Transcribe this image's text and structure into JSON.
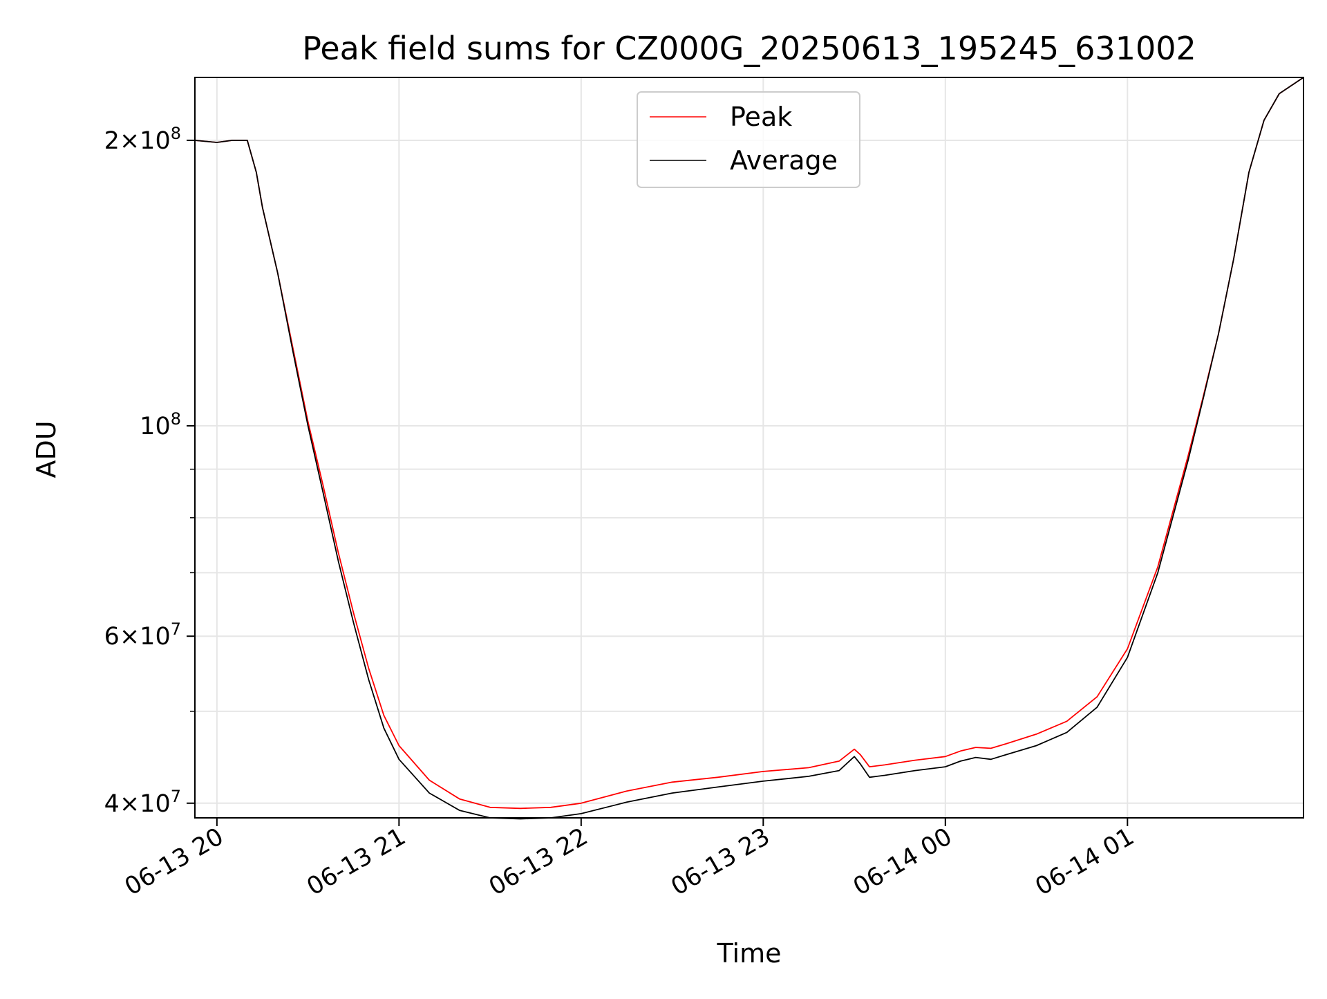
{
  "chart_data": {
    "type": "line",
    "title": "Peak field sums for CZ000G_20250613_195245_631002",
    "xlabel": "Time",
    "ylabel": "ADU",
    "y_scale": "log",
    "grid": true,
    "legend_position": "top-center",
    "xlim": [
      "2025-06-13 19:52:45",
      "2025-06-14 01:58:00"
    ],
    "ylim": [
      38600000,
      233000000
    ],
    "x_ticks": [
      {
        "value": "2025-06-13 20:00",
        "label": "06-13 20"
      },
      {
        "value": "2025-06-13 21:00",
        "label": "06-13 21"
      },
      {
        "value": "2025-06-13 22:00",
        "label": "06-13 22"
      },
      {
        "value": "2025-06-13 23:00",
        "label": "06-13 23"
      },
      {
        "value": "2025-06-14 00:00",
        "label": "06-14 00"
      },
      {
        "value": "2025-06-14 01:00",
        "label": "06-14 01"
      }
    ],
    "y_ticks": [
      {
        "value": 40000000,
        "base": "4",
        "exp": "7"
      },
      {
        "value": 60000000,
        "base": "6",
        "exp": "7"
      },
      {
        "value": 100000000,
        "base": "",
        "exp": "8"
      },
      {
        "value": 200000000,
        "base": "2",
        "exp": "8"
      }
    ],
    "y_minor_ticks": [
      50000000,
      70000000,
      80000000,
      90000000
    ],
    "series": [
      {
        "name": "Average",
        "color": "#000000",
        "x": [
          "2025-06-13 19:52:45",
          "2025-06-13 20:00",
          "2025-06-13 20:05",
          "2025-06-13 20:10",
          "2025-06-13 20:13",
          "2025-06-13 20:15",
          "2025-06-13 20:20",
          "2025-06-13 20:25",
          "2025-06-13 20:30",
          "2025-06-13 20:35",
          "2025-06-13 20:40",
          "2025-06-13 20:45",
          "2025-06-13 20:50",
          "2025-06-13 20:55",
          "2025-06-13 21:00",
          "2025-06-13 21:10",
          "2025-06-13 21:20",
          "2025-06-13 21:30",
          "2025-06-13 21:40",
          "2025-06-13 21:50",
          "2025-06-13 22:00",
          "2025-06-13 22:15",
          "2025-06-13 22:30",
          "2025-06-13 22:45",
          "2025-06-13 23:00",
          "2025-06-13 23:15",
          "2025-06-13 23:25",
          "2025-06-13 23:30",
          "2025-06-13 23:32",
          "2025-06-13 23:35",
          "2025-06-13 23:40",
          "2025-06-13 23:50",
          "2025-06-14 00:00",
          "2025-06-14 00:05",
          "2025-06-14 00:10",
          "2025-06-14 00:15",
          "2025-06-14 00:20",
          "2025-06-14 00:30",
          "2025-06-14 00:40",
          "2025-06-14 00:50",
          "2025-06-14 01:00",
          "2025-06-14 01:10",
          "2025-06-14 01:20",
          "2025-06-14 01:25",
          "2025-06-14 01:30",
          "2025-06-14 01:35",
          "2025-06-14 01:40",
          "2025-06-14 01:45",
          "2025-06-14 01:50",
          "2025-06-14 01:58"
        ],
        "y": [
          200000000,
          199000000,
          200000000,
          200000000,
          185000000,
          170000000,
          145000000,
          120000000,
          100000000,
          85000000,
          72000000,
          62000000,
          54000000,
          48000000,
          44500000,
          41000000,
          39300000,
          38600000,
          38500000,
          38600000,
          39000000,
          40100000,
          41000000,
          41600000,
          42200000,
          42700000,
          43300000,
          44800000,
          44000000,
          42600000,
          42800000,
          43300000,
          43700000,
          44300000,
          44700000,
          44500000,
          45000000,
          46000000,
          47500000,
          50500000,
          57000000,
          70000000,
          92000000,
          107000000,
          125000000,
          150000000,
          185000000,
          210000000,
          224000000,
          233000000
        ]
      },
      {
        "name": "Peak",
        "color": "#ff0000",
        "x": [
          "2025-06-13 19:52:45",
          "2025-06-13 20:00",
          "2025-06-13 20:05",
          "2025-06-13 20:10",
          "2025-06-13 20:13",
          "2025-06-13 20:15",
          "2025-06-13 20:20",
          "2025-06-13 20:25",
          "2025-06-13 20:30",
          "2025-06-13 20:35",
          "2025-06-13 20:40",
          "2025-06-13 20:45",
          "2025-06-13 20:50",
          "2025-06-13 20:55",
          "2025-06-13 21:00",
          "2025-06-13 21:10",
          "2025-06-13 21:20",
          "2025-06-13 21:30",
          "2025-06-13 21:40",
          "2025-06-13 21:50",
          "2025-06-13 22:00",
          "2025-06-13 22:15",
          "2025-06-13 22:30",
          "2025-06-13 22:45",
          "2025-06-13 23:00",
          "2025-06-13 23:15",
          "2025-06-13 23:25",
          "2025-06-13 23:30",
          "2025-06-13 23:32",
          "2025-06-13 23:35",
          "2025-06-13 23:40",
          "2025-06-13 23:50",
          "2025-06-14 00:00",
          "2025-06-14 00:05",
          "2025-06-14 00:10",
          "2025-06-14 00:15",
          "2025-06-14 00:20",
          "2025-06-14 00:30",
          "2025-06-14 00:40",
          "2025-06-14 00:50",
          "2025-06-14 01:00",
          "2025-06-14 01:10",
          "2025-06-14 01:20",
          "2025-06-14 01:25",
          "2025-06-14 01:30",
          "2025-06-14 01:35",
          "2025-06-14 01:40",
          "2025-06-14 01:45",
          "2025-06-14 01:50",
          "2025-06-14 01:58"
        ],
        "y": [
          200000000,
          199000000,
          200000000,
          200000000,
          185000000,
          170000000,
          145000000,
          121000000,
          101000000,
          86500000,
          73500000,
          63500000,
          55500000,
          49500000,
          46000000,
          42300000,
          40400000,
          39600000,
          39500000,
          39600000,
          40000000,
          41200000,
          42100000,
          42600000,
          43200000,
          43600000,
          44300000,
          45600000,
          45000000,
          43700000,
          43900000,
          44400000,
          44800000,
          45400000,
          45800000,
          45700000,
          46200000,
          47300000,
          48800000,
          51800000,
          58200000,
          71000000,
          93000000,
          107500000,
          125000000,
          150000000,
          185000000,
          210000000,
          224000000,
          233000000
        ]
      }
    ]
  }
}
